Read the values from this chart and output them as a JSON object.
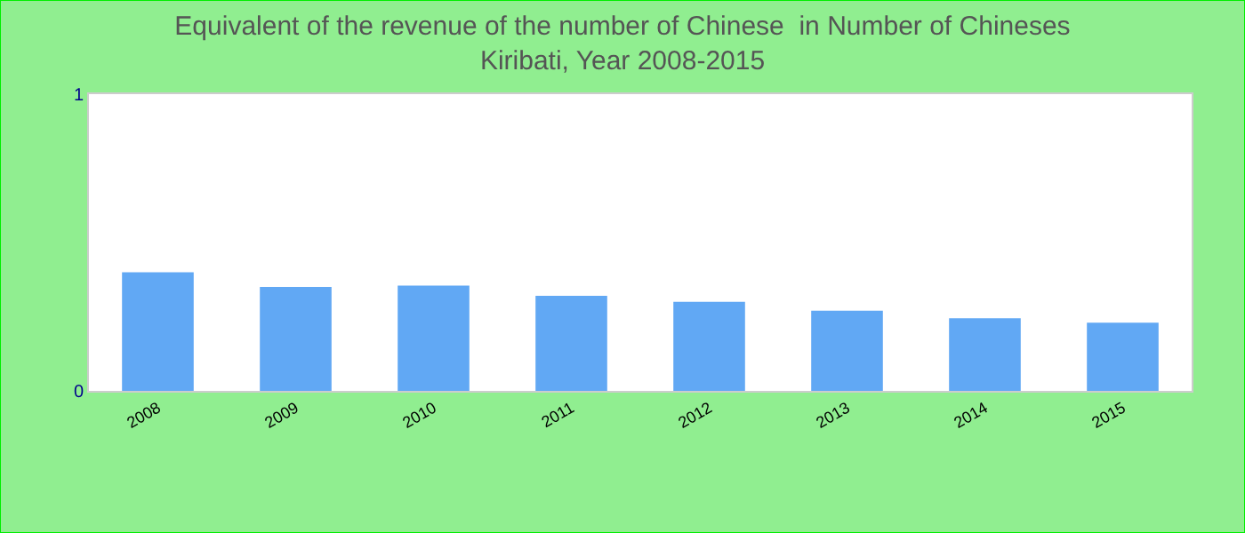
{
  "chart_data": {
    "type": "bar",
    "title": "Equivalent of the revenue of the number of Chinese  in Number of Chineses",
    "subtitle": "Kiribati, Year 2008-2015",
    "categories": [
      "2008",
      "2009",
      "2010",
      "2011",
      "2012",
      "2013",
      "2014",
      "2015"
    ],
    "values": [
      0.4,
      0.35,
      0.355,
      0.32,
      0.3,
      0.27,
      0.245,
      0.23
    ],
    "color": "#61a8f4",
    "ylim": [
      0,
      1
    ],
    "yticks": [
      0,
      1
    ],
    "legend": false
  }
}
